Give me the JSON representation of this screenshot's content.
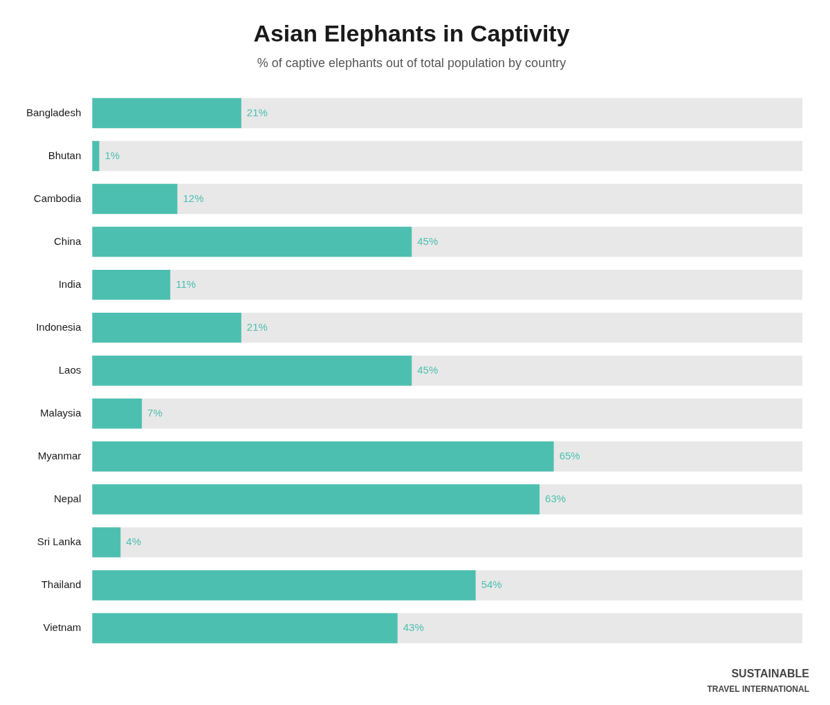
{
  "chart_data": {
    "type": "bar",
    "orientation": "horizontal",
    "title": "Asian Elephants in Captivity",
    "subtitle": "% of captive elephants out of total population by country",
    "categories": [
      "Bangladesh",
      "Bhutan",
      "Cambodia",
      "China",
      "India",
      "Indonesia",
      "Laos",
      "Malaysia",
      "Myanmar",
      "Nepal",
      "Sri Lanka",
      "Thailand",
      "Vietnam"
    ],
    "values": [
      21,
      1,
      12,
      45,
      11,
      21,
      45,
      7,
      65,
      63,
      4,
      54,
      43
    ],
    "value_labels": [
      "21%",
      "1%",
      "12%",
      "45%",
      "11%",
      "21%",
      "45%",
      "7%",
      "65%",
      "63%",
      "4%",
      "54%",
      "43%"
    ],
    "data_labels": true,
    "color": "#4DBFB0",
    "xlim": [
      0,
      100
    ],
    "grid": false,
    "tick_labels": "y",
    "annotations": [
      "SUSTAINABLE",
      "TRAVEL INTERNATIONAL"
    ]
  }
}
